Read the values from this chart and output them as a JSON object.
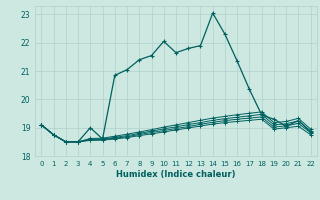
{
  "xlabel": "Humidex (Indice chaleur)",
  "xlim": [
    -0.5,
    22.5
  ],
  "ylim": [
    18.0,
    23.3
  ],
  "yticks": [
    18,
    19,
    20,
    21,
    22,
    23
  ],
  "xticks": [
    0,
    1,
    2,
    3,
    4,
    5,
    6,
    7,
    8,
    9,
    10,
    11,
    12,
    13,
    14,
    15,
    16,
    17,
    18,
    19,
    20,
    21,
    22
  ],
  "bg_color": "#cce8e0",
  "grid_color": "#b0d0cc",
  "line_color": "#006060",
  "main_line": [
    19.1,
    18.75,
    18.5,
    18.5,
    19.0,
    18.6,
    20.85,
    21.05,
    21.4,
    21.55,
    22.05,
    21.65,
    21.8,
    21.9,
    23.05,
    22.3,
    21.35,
    20.35,
    19.45,
    19.3,
    19.05,
    19.25,
    18.85
  ],
  "flat_lines": [
    [
      19.1,
      18.75,
      18.5,
      18.5,
      18.55,
      18.56,
      18.6,
      18.65,
      18.72,
      18.78,
      18.85,
      18.92,
      18.99,
      19.06,
      19.13,
      19.18,
      19.22,
      19.26,
      19.3,
      18.95,
      19.0,
      19.05,
      18.75
    ],
    [
      19.1,
      18.75,
      18.5,
      18.5,
      18.57,
      18.58,
      18.63,
      18.68,
      18.76,
      18.83,
      18.9,
      18.97,
      19.04,
      19.12,
      19.19,
      19.25,
      19.3,
      19.34,
      19.38,
      19.02,
      19.07,
      19.15,
      18.82
    ],
    [
      19.1,
      18.75,
      18.5,
      18.5,
      18.59,
      18.6,
      18.66,
      18.72,
      18.8,
      18.88,
      18.96,
      19.03,
      19.11,
      19.18,
      19.26,
      19.32,
      19.37,
      19.42,
      19.47,
      19.1,
      19.14,
      19.24,
      18.88
    ],
    [
      19.1,
      18.75,
      18.5,
      18.5,
      18.62,
      18.63,
      18.7,
      18.77,
      18.85,
      18.93,
      19.02,
      19.1,
      19.18,
      19.26,
      19.34,
      19.4,
      19.46,
      19.51,
      19.56,
      19.18,
      19.22,
      19.33,
      18.95
    ]
  ]
}
